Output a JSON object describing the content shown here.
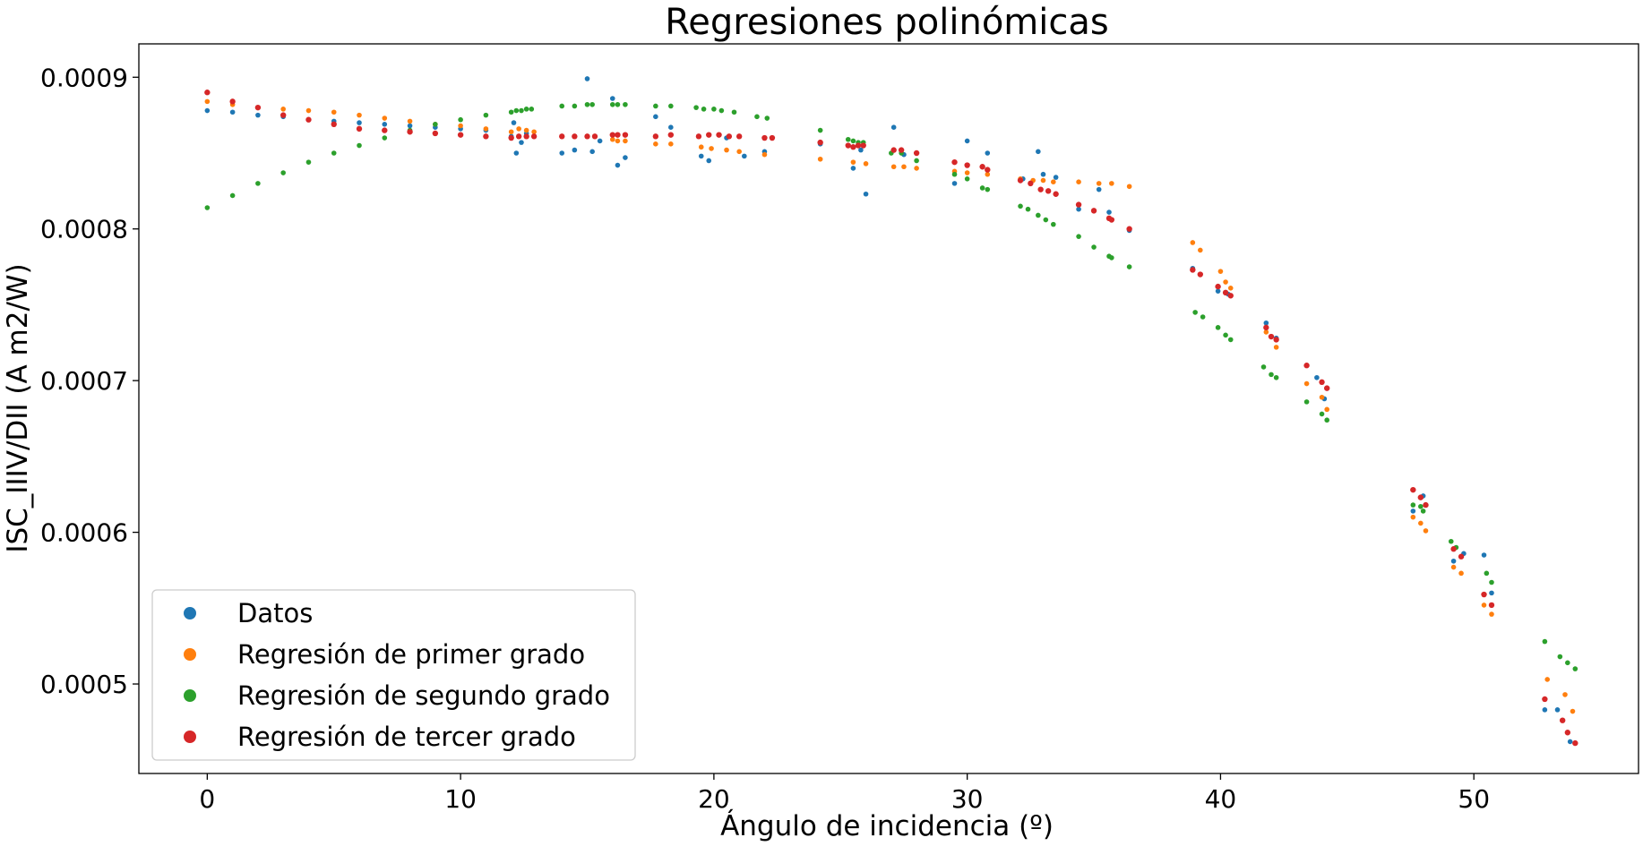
{
  "chart_data": {
    "type": "scatter",
    "title": "Regresiones polinómicas",
    "xlabel": "Ángulo de incidencia (º)",
    "ylabel": "ISC_IIIV/DII (A m2/W)",
    "xlim": [
      -2.7,
      56.5
    ],
    "ylim": [
      0.000441,
      0.000922
    ],
    "xticks": [
      0,
      10,
      20,
      30,
      40,
      50
    ],
    "xtick_labels": [
      "0",
      "10",
      "20",
      "30",
      "40",
      "50"
    ],
    "yticks": [
      0.0005,
      0.0006,
      0.0007,
      0.0008,
      0.0009
    ],
    "ytick_labels": [
      "0.0005",
      "0.0006",
      "0.0007",
      "0.0008",
      "0.0009"
    ],
    "grid": false,
    "legend_position": "lower-left",
    "series": [
      {
        "name": "Datos",
        "color": "#1f77b4",
        "x": [
          0,
          1,
          2,
          3,
          4,
          5,
          6,
          7,
          8,
          9,
          10,
          11,
          12,
          12.1,
          12.2,
          12.4,
          12.6,
          14,
          14.5,
          15,
          15.2,
          15.5,
          16,
          16.2,
          16.5,
          17.7,
          18.3,
          19.5,
          19.8,
          20.5,
          21.2,
          22,
          24.2,
          25.5,
          25.8,
          26,
          27.1,
          27.5,
          29.5,
          30,
          30.8,
          32.2,
          32.8,
          33,
          33.5,
          34.4,
          35.2,
          35.6,
          36.4,
          38.9,
          39.9,
          40.3,
          41.8,
          42.2,
          43.8,
          44.1,
          47.6,
          48,
          49.2,
          49.6,
          50.4,
          50.7,
          52.8,
          53.3,
          53.8
        ],
        "y": [
          0.000878,
          0.000877,
          0.000875,
          0.000874,
          0.000872,
          0.000871,
          0.00087,
          0.000869,
          0.000868,
          0.000867,
          0.000866,
          0.000865,
          0.000861,
          0.00087,
          0.00085,
          0.000857,
          0.000863,
          0.00085,
          0.000852,
          0.000899,
          0.000851,
          0.000858,
          0.000886,
          0.000842,
          0.000847,
          0.000874,
          0.000867,
          0.000848,
          0.000845,
          0.00086,
          0.000848,
          0.000851,
          0.000856,
          0.00084,
          0.000852,
          0.000823,
          0.000867,
          0.000849,
          0.00083,
          0.000858,
          0.00085,
          0.000833,
          0.000851,
          0.000836,
          0.000834,
          0.000813,
          0.000826,
          0.000811,
          0.000799,
          0.000774,
          0.000759,
          0.000757,
          0.000738,
          0.000728,
          0.000702,
          0.000688,
          0.000614,
          0.000624,
          0.000581,
          0.000586,
          0.000585,
          0.00056,
          0.000483,
          0.000483,
          0.000462
        ]
      },
      {
        "name": "Regresión de primer grado",
        "color": "#ff7f0e",
        "x": [
          0,
          1,
          2,
          3,
          4,
          5,
          6,
          7,
          8,
          9,
          10,
          11,
          12,
          12.3,
          12.6,
          12.9,
          16,
          16.2,
          16.5,
          17.7,
          18.3,
          19.5,
          19.9,
          20.5,
          21,
          22,
          24.2,
          25.5,
          26,
          27.1,
          27.5,
          28,
          29.5,
          30,
          30.8,
          32.1,
          32.6,
          33,
          33.4,
          34.4,
          35.2,
          35.7,
          36.4,
          38.9,
          39.2,
          40,
          40.2,
          40.4,
          41.8,
          42.2,
          43.4,
          44,
          44.2,
          47.6,
          47.9,
          48.1,
          49.2,
          49.5,
          50.4,
          50.7,
          52.9,
          53.6,
          53.9
        ],
        "y": [
          0.000884,
          0.000882,
          0.00088,
          0.000879,
          0.000878,
          0.000877,
          0.000875,
          0.000873,
          0.000871,
          0.000869,
          0.000868,
          0.000866,
          0.000864,
          0.000866,
          0.000865,
          0.000864,
          0.000859,
          0.000858,
          0.000858,
          0.000856,
          0.000856,
          0.000854,
          0.000853,
          0.000852,
          0.000851,
          0.000849,
          0.000846,
          0.000844,
          0.000843,
          0.000841,
          0.000841,
          0.00084,
          0.000838,
          0.000837,
          0.000836,
          0.000833,
          0.000832,
          0.000832,
          0.000831,
          0.000831,
          0.00083,
          0.00083,
          0.000828,
          0.000791,
          0.000786,
          0.000772,
          0.000765,
          0.000761,
          0.000732,
          0.000722,
          0.000698,
          0.000689,
          0.000681,
          0.00061,
          0.000606,
          0.000601,
          0.000577,
          0.000573,
          0.000552,
          0.000546,
          0.000503,
          0.000493,
          0.000482
        ]
      },
      {
        "name": "Regresión de segundo grado",
        "color": "#2ca02c",
        "x": [
          0,
          1,
          2,
          3,
          4,
          5,
          6,
          7,
          8,
          9,
          10,
          11,
          12,
          12.2,
          12.4,
          12.6,
          12.8,
          14,
          14.5,
          15,
          15.2,
          16,
          16.2,
          16.5,
          17.7,
          18.3,
          19.3,
          19.6,
          20,
          20.3,
          20.8,
          21.7,
          22.1,
          24.2,
          25.3,
          25.5,
          25.7,
          25.9,
          27,
          27.4,
          28,
          29.5,
          30,
          30.6,
          30.8,
          32.1,
          32.4,
          32.8,
          33.1,
          33.4,
          34.4,
          35,
          35.6,
          35.7,
          36.4,
          39,
          39.3,
          39.9,
          40.2,
          40.4,
          41.7,
          42,
          42.2,
          43.4,
          44,
          44.2,
          47.6,
          47.9,
          48,
          49.1,
          49.3,
          50.5,
          50.7,
          52.8,
          53.4,
          53.7,
          54
        ],
        "y": [
          0.000814,
          0.000822,
          0.00083,
          0.000837,
          0.000844,
          0.00085,
          0.000855,
          0.00086,
          0.000865,
          0.000869,
          0.000872,
          0.000875,
          0.000877,
          0.000878,
          0.000878,
          0.000879,
          0.000879,
          0.000881,
          0.000881,
          0.000882,
          0.000882,
          0.000882,
          0.000882,
          0.000882,
          0.000881,
          0.000881,
          0.00088,
          0.000879,
          0.000879,
          0.000878,
          0.000877,
          0.000874,
          0.000873,
          0.000865,
          0.000859,
          0.000858,
          0.000857,
          0.000857,
          0.00085,
          0.00085,
          0.000845,
          0.000836,
          0.000833,
          0.000827,
          0.000826,
          0.000815,
          0.000813,
          0.000809,
          0.000806,
          0.000803,
          0.000795,
          0.000788,
          0.000782,
          0.000781,
          0.000775,
          0.000745,
          0.000742,
          0.000735,
          0.00073,
          0.000727,
          0.000709,
          0.000704,
          0.000702,
          0.000686,
          0.000678,
          0.000674,
          0.000618,
          0.000617,
          0.000614,
          0.000594,
          0.00059,
          0.000573,
          0.000567,
          0.000528,
          0.000518,
          0.000514,
          0.00051
        ]
      },
      {
        "name": "Regresión de tercer grado",
        "color": "#d62728",
        "x": [
          0,
          1,
          2,
          3,
          4,
          5,
          6,
          7,
          8,
          9,
          10,
          11,
          12,
          12.3,
          12.6,
          12.9,
          14,
          14.5,
          15,
          15.3,
          16,
          16.2,
          16.5,
          17.7,
          18.3,
          19.4,
          19.8,
          20.2,
          20.6,
          21,
          22,
          22.3,
          24.2,
          25.3,
          25.5,
          25.7,
          25.9,
          27.1,
          27.4,
          28,
          29.5,
          30,
          30.6,
          30.8,
          32.1,
          32.5,
          32.9,
          33.2,
          33.5,
          34.4,
          35,
          35.6,
          35.7,
          36.4,
          38.9,
          39.2,
          39.9,
          40.2,
          40.4,
          41.8,
          42,
          42.2,
          43.4,
          44,
          44.2,
          47.6,
          47.9,
          48.1,
          49.2,
          49.5,
          50.4,
          50.7,
          52.8,
          53.5,
          53.7,
          54
        ],
        "y": [
          0.00089,
          0.000884,
          0.00088,
          0.000875,
          0.000872,
          0.000869,
          0.000866,
          0.000865,
          0.000864,
          0.000863,
          0.000862,
          0.000861,
          0.00086,
          0.000861,
          0.000861,
          0.000861,
          0.000861,
          0.000861,
          0.000861,
          0.000861,
          0.000862,
          0.000862,
          0.000862,
          0.000861,
          0.000862,
          0.000861,
          0.000862,
          0.000862,
          0.000861,
          0.000861,
          0.00086,
          0.00086,
          0.000857,
          0.000855,
          0.000854,
          0.000855,
          0.000855,
          0.000852,
          0.000852,
          0.00085,
          0.000844,
          0.000842,
          0.000841,
          0.000839,
          0.000832,
          0.00083,
          0.000826,
          0.000825,
          0.000823,
          0.000816,
          0.000812,
          0.000807,
          0.000806,
          0.0008,
          0.000773,
          0.00077,
          0.000762,
          0.000758,
          0.000756,
          0.000735,
          0.000729,
          0.000727,
          0.00071,
          0.000699,
          0.000695,
          0.000628,
          0.000623,
          0.000618,
          0.000589,
          0.000584,
          0.000559,
          0.000552,
          0.00049,
          0.000476,
          0.000468,
          0.000461
        ]
      }
    ]
  }
}
